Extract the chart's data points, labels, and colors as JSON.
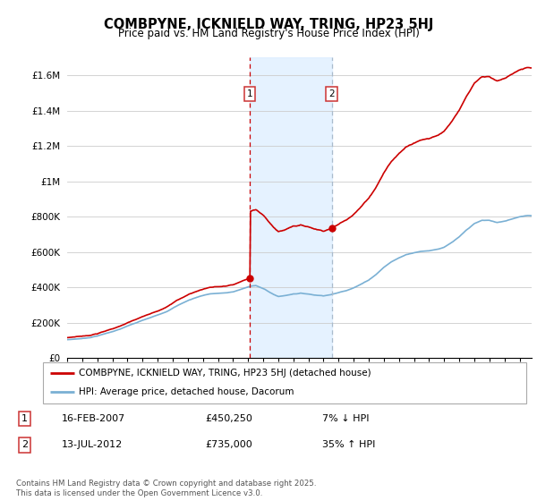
{
  "title": "COMBPYNE, ICKNIELD WAY, TRING, HP23 5HJ",
  "subtitle": "Price paid vs. HM Land Registry's House Price Index (HPI)",
  "ylim": [
    0,
    1700000
  ],
  "yticks": [
    0,
    200000,
    400000,
    600000,
    800000,
    1000000,
    1200000,
    1400000,
    1600000
  ],
  "ytick_labels": [
    "£0",
    "£200K",
    "£400K",
    "£600K",
    "£800K",
    "£1M",
    "£1.2M",
    "£1.4M",
    "£1.6M"
  ],
  "bg_color": "#ffffff",
  "grid_color": "#cccccc",
  "sale1_year": 2007.12,
  "sale1_price": 450250,
  "sale2_year": 2012.54,
  "sale2_price": 735000,
  "legend_line1": "COMBPYNE, ICKNIELD WAY, TRING, HP23 5HJ (detached house)",
  "legend_line2": "HPI: Average price, detached house, Dacorum",
  "footnote": "Contains HM Land Registry data © Crown copyright and database right 2025.\nThis data is licensed under the Open Government Licence v3.0.",
  "house_color": "#cc0000",
  "hpi_color": "#7ab0d4",
  "vline1_color": "#cc0000",
  "vline2_color": "#aabbcc",
  "shade_color": "#ddeeff",
  "xmin": 1995.0,
  "xmax": 2025.8,
  "hpi_base_points_x": [
    1995.0,
    1995.5,
    1996.0,
    1996.5,
    1997.0,
    1997.5,
    1998.0,
    1998.5,
    1999.0,
    1999.5,
    2000.0,
    2000.5,
    2001.0,
    2001.5,
    2002.0,
    2002.5,
    2003.0,
    2003.5,
    2004.0,
    2004.5,
    2005.0,
    2005.5,
    2006.0,
    2006.5,
    2007.0,
    2007.12,
    2007.5,
    2008.0,
    2008.5,
    2009.0,
    2009.5,
    2010.0,
    2010.5,
    2011.0,
    2011.5,
    2012.0,
    2012.54,
    2013.0,
    2013.5,
    2014.0,
    2014.5,
    2015.0,
    2015.5,
    2016.0,
    2016.5,
    2017.0,
    2017.5,
    2018.0,
    2018.5,
    2019.0,
    2019.5,
    2020.0,
    2020.5,
    2021.0,
    2021.5,
    2022.0,
    2022.5,
    2023.0,
    2023.5,
    2024.0,
    2024.5,
    2025.0,
    2025.5
  ],
  "hpi_base_points_y": [
    105000,
    108000,
    112000,
    118000,
    128000,
    140000,
    153000,
    166000,
    183000,
    198000,
    214000,
    228000,
    244000,
    262000,
    285000,
    308000,
    328000,
    344000,
    358000,
    368000,
    370000,
    372000,
    378000,
    392000,
    405000,
    408000,
    415000,
    398000,
    372000,
    352000,
    358000,
    368000,
    372000,
    368000,
    362000,
    360000,
    368000,
    378000,
    390000,
    408000,
    428000,
    452000,
    485000,
    525000,
    556000,
    578000,
    598000,
    610000,
    618000,
    622000,
    630000,
    642000,
    668000,
    698000,
    738000,
    772000,
    790000,
    790000,
    778000,
    784000,
    798000,
    812000,
    820000
  ]
}
